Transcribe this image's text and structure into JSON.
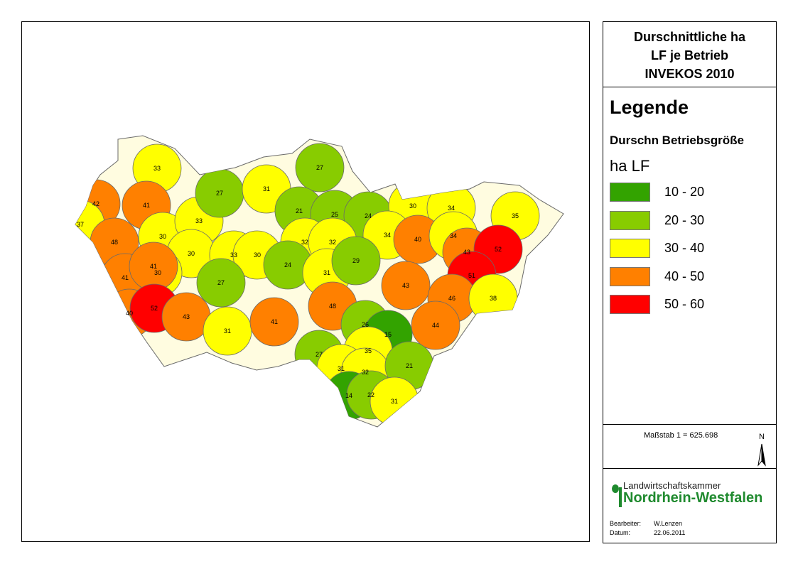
{
  "title": {
    "line1": "Durschnittliche ha",
    "line2": "LF je Betrieb",
    "line3": "INVEKOS 2010"
  },
  "legend": {
    "heading": "Legende",
    "subheading": "Durschn Betriebsgröße",
    "unit": "ha LF",
    "classes": [
      {
        "label": "10 - 20",
        "color": "#33a300"
      },
      {
        "label": "20 - 30",
        "color": "#88cc00"
      },
      {
        "label": "30 - 40",
        "color": "#ffff00"
      },
      {
        "label": "40 - 50",
        "color": "#ff8000"
      },
      {
        "label": "50 - 60",
        "color": "#ff0000"
      }
    ]
  },
  "scale": {
    "text": "Maßstab  1 = 625.698"
  },
  "north_arrow": {
    "letter": "N",
    "icon": "north-arrow-icon"
  },
  "logo": {
    "line1": "Landwirtschaftskammer",
    "line2": "Nordrhein-Westfalen",
    "icon": "lwk-logo-icon"
  },
  "credits": {
    "editor_label": "Bearbeiter:",
    "editor_value": "W.Lenzen",
    "date_label": "Datum:",
    "date_value": "22.06.2011"
  },
  "map": {
    "region_values": [
      33,
      42,
      41,
      37,
      30,
      33,
      27,
      31,
      27,
      21,
      25,
      24,
      30,
      34,
      35,
      48,
      30,
      30,
      33,
      30,
      32,
      32,
      34,
      40,
      34,
      43,
      52,
      41,
      41,
      27,
      24,
      31,
      29,
      43,
      51,
      40,
      52,
      43,
      31,
      41,
      48,
      26,
      15,
      46,
      38,
      44,
      27,
      35,
      31,
      32,
      21,
      14,
      22,
      31
    ]
  }
}
